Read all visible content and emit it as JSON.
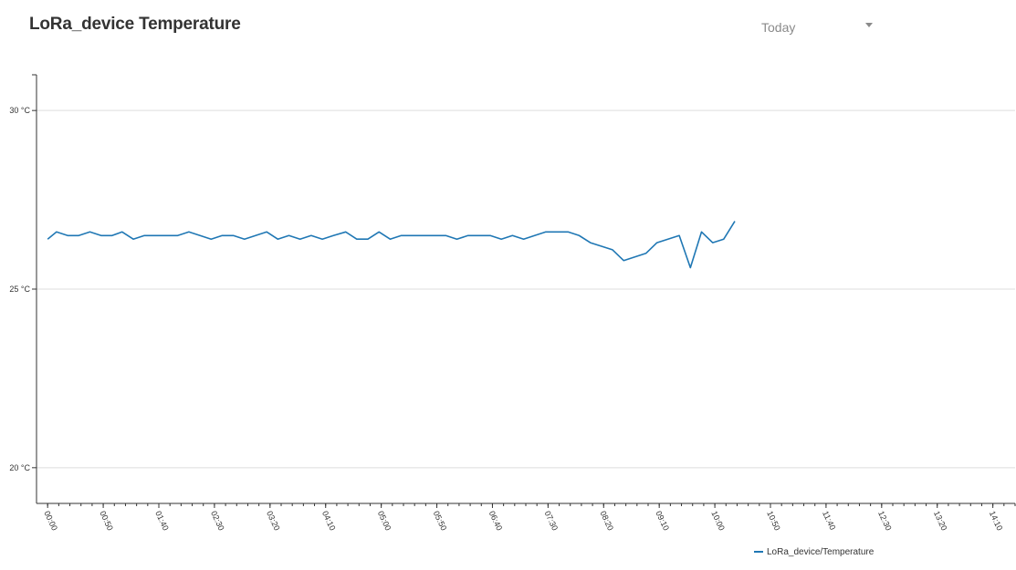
{
  "header": {
    "title": "LoRa_device Temperature",
    "range": {
      "selected": "Today"
    }
  },
  "colors": {
    "series": "#1f77b4",
    "grid": "#dddddd",
    "axis": "#333333"
  },
  "icons": {
    "dropdown": "caret-down-icon"
  },
  "chart_data": {
    "type": "line",
    "title": "",
    "xlabel": "",
    "ylabel": "",
    "grid": true,
    "legend_position": "bottom-right",
    "x_unit": "minutes since 00:00",
    "xlim": [
      -10,
      870
    ],
    "ylim": [
      19,
      31
    ],
    "y_ticks": [
      {
        "value": 20,
        "label": "20 °C"
      },
      {
        "value": 25,
        "label": "25 °C"
      },
      {
        "value": 30,
        "label": "30 °C"
      }
    ],
    "x_ticks": [
      {
        "value": 0,
        "label": "00:00"
      },
      {
        "value": 50,
        "label": "00:50"
      },
      {
        "value": 100,
        "label": "01:40"
      },
      {
        "value": 150,
        "label": "02:30"
      },
      {
        "value": 200,
        "label": "03:20"
      },
      {
        "value": 250,
        "label": "04:10"
      },
      {
        "value": 300,
        "label": "05:00"
      },
      {
        "value": 350,
        "label": "05:50"
      },
      {
        "value": 400,
        "label": "06:40"
      },
      {
        "value": 450,
        "label": "07:30"
      },
      {
        "value": 500,
        "label": "08:20"
      },
      {
        "value": 550,
        "label": "09:10"
      },
      {
        "value": 600,
        "label": "10:00"
      },
      {
        "value": 650,
        "label": "10:50"
      },
      {
        "value": 700,
        "label": "11:40"
      },
      {
        "value": 750,
        "label": "12:30"
      },
      {
        "value": 800,
        "label": "13:20"
      },
      {
        "value": 850,
        "label": "14:10"
      }
    ],
    "series": [
      {
        "name": "LoRa_device/Temperature",
        "color": "#1f77b4",
        "points": [
          [
            0,
            26.4
          ],
          [
            8,
            26.6
          ],
          [
            18,
            26.5
          ],
          [
            28,
            26.5
          ],
          [
            38,
            26.6
          ],
          [
            48,
            26.5
          ],
          [
            58,
            26.5
          ],
          [
            67,
            26.6
          ],
          [
            77,
            26.4
          ],
          [
            87,
            26.5
          ],
          [
            97,
            26.5
          ],
          [
            107,
            26.5
          ],
          [
            117,
            26.5
          ],
          [
            127,
            26.6
          ],
          [
            137,
            26.5
          ],
          [
            147,
            26.4
          ],
          [
            157,
            26.5
          ],
          [
            167,
            26.5
          ],
          [
            177,
            26.4
          ],
          [
            187,
            26.5
          ],
          [
            197,
            26.6
          ],
          [
            207,
            26.4
          ],
          [
            217,
            26.5
          ],
          [
            227,
            26.4
          ],
          [
            237,
            26.5
          ],
          [
            247,
            26.4
          ],
          [
            257,
            26.5
          ],
          [
            268,
            26.6
          ],
          [
            278,
            26.4
          ],
          [
            288,
            26.4
          ],
          [
            298,
            26.6
          ],
          [
            308,
            26.4
          ],
          [
            318,
            26.5
          ],
          [
            328,
            26.5
          ],
          [
            338,
            26.5
          ],
          [
            348,
            26.5
          ],
          [
            358,
            26.5
          ],
          [
            368,
            26.4
          ],
          [
            378,
            26.5
          ],
          [
            388,
            26.5
          ],
          [
            398,
            26.5
          ],
          [
            408,
            26.4
          ],
          [
            418,
            26.5
          ],
          [
            428,
            26.4
          ],
          [
            438,
            26.5
          ],
          [
            448,
            26.6
          ],
          [
            458,
            26.6
          ],
          [
            468,
            26.6
          ],
          [
            478,
            26.5
          ],
          [
            488,
            26.3
          ],
          [
            508,
            26.1
          ],
          [
            518,
            25.8
          ],
          [
            538,
            26.0
          ],
          [
            548,
            26.3
          ],
          [
            568,
            26.5
          ],
          [
            578,
            25.6
          ],
          [
            588,
            26.6
          ],
          [
            598,
            26.3
          ],
          [
            608,
            26.4
          ],
          [
            618,
            26.9
          ]
        ]
      }
    ]
  }
}
